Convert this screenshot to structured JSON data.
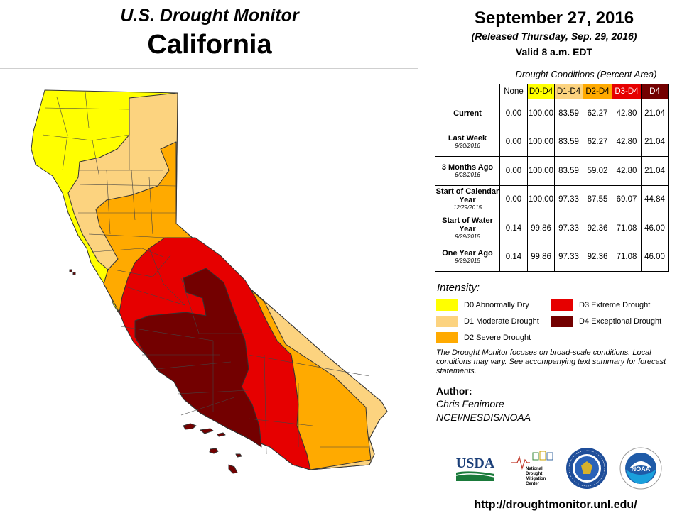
{
  "header": {
    "title": "U.S. Drought Monitor",
    "region": "California",
    "date": "September 27, 2016",
    "released": "(Released Thursday, Sep. 29, 2016)",
    "valid": "Valid 8 a.m. EDT"
  },
  "table": {
    "caption": "Drought Conditions (Percent Area)",
    "columns": [
      {
        "label": "None",
        "color": "#ffffff",
        "text_color": "#000000"
      },
      {
        "label": "D0-D4",
        "color": "#ffff00",
        "text_color": "#000000"
      },
      {
        "label": "D1-D4",
        "color": "#fcd37f",
        "text_color": "#000000"
      },
      {
        "label": "D2-D4",
        "color": "#ffaa00",
        "text_color": "#000000"
      },
      {
        "label": "D3-D4",
        "color": "#e60000",
        "text_color": "#ffffff"
      },
      {
        "label": "D4",
        "color": "#730000",
        "text_color": "#ffffff"
      }
    ],
    "rows": [
      {
        "label": "Current",
        "date": "",
        "values": [
          "0.00",
          "100.00",
          "83.59",
          "62.27",
          "42.80",
          "21.04"
        ]
      },
      {
        "label": "Last Week",
        "date": "9/20/2016",
        "values": [
          "0.00",
          "100.00",
          "83.59",
          "62.27",
          "42.80",
          "21.04"
        ]
      },
      {
        "label": "3 Months Ago",
        "date": "6/28/2016",
        "values": [
          "0.00",
          "100.00",
          "83.59",
          "59.02",
          "42.80",
          "21.04"
        ]
      },
      {
        "label": "Start of Calendar Year",
        "date": "12/29/2015",
        "values": [
          "0.00",
          "100.00",
          "97.33",
          "87.55",
          "69.07",
          "44.84"
        ]
      },
      {
        "label": "Start of Water Year",
        "date": "9/29/2015",
        "values": [
          "0.14",
          "99.86",
          "97.33",
          "92.36",
          "71.08",
          "46.00"
        ]
      },
      {
        "label": "One Year Ago",
        "date": "9/29/2015",
        "values": [
          "0.14",
          "99.86",
          "97.33",
          "92.36",
          "71.08",
          "46.00"
        ]
      }
    ]
  },
  "legend": {
    "title": "Intensity:",
    "items": [
      {
        "label": "D0 Abnormally Dry",
        "color": "#ffff00"
      },
      {
        "label": "D1 Moderate Drought",
        "color": "#fcd37f"
      },
      {
        "label": "D2 Severe Drought",
        "color": "#ffaa00"
      },
      {
        "label": "D3 Extreme Drought",
        "color": "#e60000"
      },
      {
        "label": "D4 Exceptional Drought",
        "color": "#730000"
      }
    ]
  },
  "note": "The Drought Monitor focuses on broad-scale conditions. Local conditions may vary. See accompanying text summary for forecast statements.",
  "author": {
    "label": "Author:",
    "name": "Chris Fenimore",
    "org": "NCEI/NESDIS/NOAA"
  },
  "logos": {
    "usda": "USDA",
    "ndmc": [
      "National",
      "Drought",
      "Mitigation",
      "Center"
    ],
    "noaa": "NOAA"
  },
  "url": "http://droughtmonitor.unl.edu/"
}
